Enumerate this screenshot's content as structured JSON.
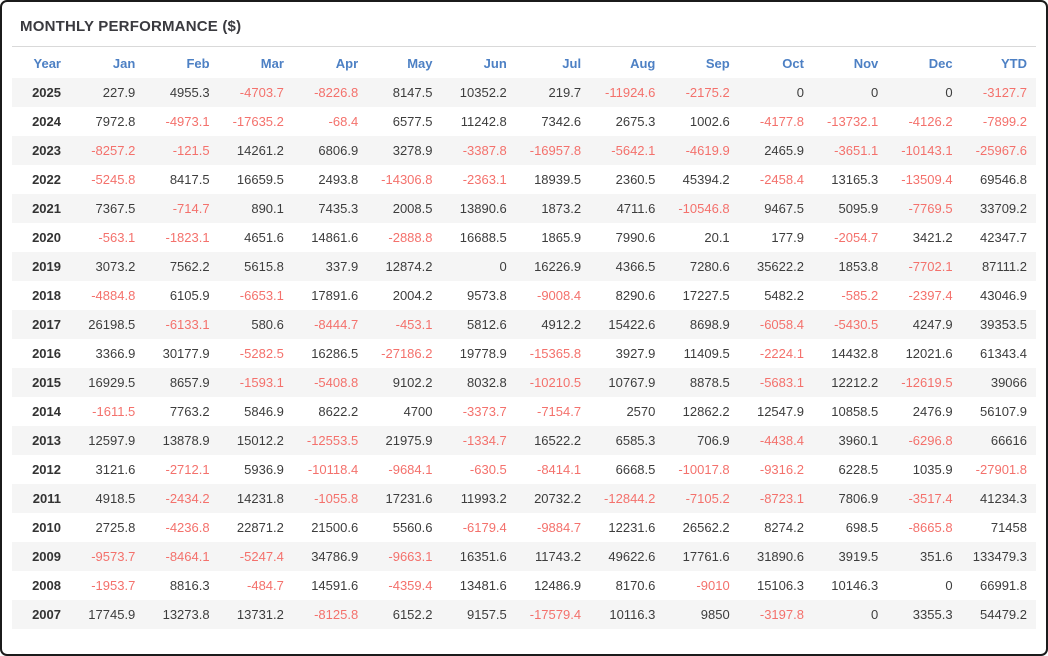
{
  "title": "MONTHLY PERFORMANCE ($)",
  "colors": {
    "header_blue": "#4d80c4",
    "negative_red": "#f4716c",
    "positive_text": "#3d3d3d",
    "stripe": "#f5f5f5",
    "border": "#1b1b1b"
  },
  "table": {
    "columns": [
      "Year",
      "Jan",
      "Feb",
      "Mar",
      "Apr",
      "May",
      "Jun",
      "Jul",
      "Aug",
      "Sep",
      "Oct",
      "Nov",
      "Dec",
      "YTD"
    ],
    "rows": [
      {
        "year": "2025",
        "values": [
          227.9,
          4955.3,
          -4703.7,
          -8226.8,
          8147.5,
          10352.2,
          219.7,
          -11924.6,
          -2175.2,
          0,
          0,
          0,
          -3127.7
        ]
      },
      {
        "year": "2024",
        "values": [
          7972.8,
          -4973.1,
          -17635.2,
          -68.4,
          6577.5,
          11242.8,
          7342.6,
          2675.3,
          1002.6,
          -4177.8,
          -13732.1,
          -4126.2,
          -7899.2
        ]
      },
      {
        "year": "2023",
        "values": [
          -8257.2,
          -121.5,
          14261.2,
          6806.9,
          3278.9,
          -3387.8,
          -16957.8,
          -5642.1,
          -4619.9,
          2465.9,
          -3651.1,
          -10143.1,
          -25967.6
        ]
      },
      {
        "year": "2022",
        "values": [
          -5245.8,
          8417.5,
          16659.5,
          2493.8,
          -14306.8,
          -2363.1,
          18939.5,
          2360.5,
          45394.2,
          -2458.4,
          13165.3,
          -13509.4,
          69546.8
        ]
      },
      {
        "year": "2021",
        "values": [
          7367.5,
          -714.7,
          890.1,
          7435.3,
          2008.5,
          13890.6,
          1873.2,
          4711.6,
          -10546.8,
          9467.5,
          5095.9,
          -7769.5,
          33709.2
        ]
      },
      {
        "year": "2020",
        "values": [
          -563.1,
          -1823.1,
          4651.6,
          14861.6,
          -2888.8,
          16688.5,
          1865.9,
          7990.6,
          20.1,
          177.9,
          -2054.7,
          3421.2,
          42347.7
        ]
      },
      {
        "year": "2019",
        "values": [
          3073.2,
          7562.2,
          5615.8,
          337.9,
          12874.2,
          0,
          16226.9,
          4366.5,
          7280.6,
          35622.2,
          1853.8,
          -7702.1,
          87111.2
        ]
      },
      {
        "year": "2018",
        "values": [
          -4884.8,
          6105.9,
          -6653.1,
          17891.6,
          2004.2,
          9573.8,
          -9008.4,
          8290.6,
          17227.5,
          5482.2,
          -585.2,
          -2397.4,
          43046.9
        ]
      },
      {
        "year": "2017",
        "values": [
          26198.5,
          -6133.1,
          580.6,
          -8444.7,
          -453.1,
          5812.6,
          4912.2,
          15422.6,
          8698.9,
          -6058.4,
          -5430.5,
          4247.9,
          39353.5
        ]
      },
      {
        "year": "2016",
        "values": [
          3366.9,
          30177.9,
          -5282.5,
          16286.5,
          -27186.2,
          19778.9,
          -15365.8,
          3927.9,
          11409.5,
          -2224.1,
          14432.8,
          12021.6,
          61343.4
        ]
      },
      {
        "year": "2015",
        "values": [
          16929.5,
          8657.9,
          -1593.1,
          -5408.8,
          9102.2,
          8032.8,
          -10210.5,
          10767.9,
          8878.5,
          -5683.1,
          12212.2,
          -12619.5,
          39066
        ]
      },
      {
        "year": "2014",
        "values": [
          -1611.5,
          7763.2,
          5846.9,
          8622.2,
          4700,
          -3373.7,
          -7154.7,
          2570,
          12862.2,
          12547.9,
          10858.5,
          2476.9,
          56107.9
        ]
      },
      {
        "year": "2013",
        "values": [
          12597.9,
          13878.9,
          15012.2,
          -12553.5,
          21975.9,
          -1334.7,
          16522.2,
          6585.3,
          706.9,
          -4438.4,
          3960.1,
          -6296.8,
          66616
        ]
      },
      {
        "year": "2012",
        "values": [
          3121.6,
          -2712.1,
          5936.9,
          -10118.4,
          -9684.1,
          -630.5,
          -8414.1,
          6668.5,
          -10017.8,
          -9316.2,
          6228.5,
          1035.9,
          -27901.8
        ]
      },
      {
        "year": "2011",
        "values": [
          4918.5,
          -2434.2,
          14231.8,
          -1055.8,
          17231.6,
          11993.2,
          20732.2,
          -12844.2,
          -7105.2,
          -8723.1,
          7806.9,
          -3517.4,
          41234.3
        ]
      },
      {
        "year": "2010",
        "values": [
          2725.8,
          -4236.8,
          22871.2,
          21500.6,
          5560.6,
          -6179.4,
          -9884.7,
          12231.6,
          26562.2,
          8274.2,
          698.5,
          -8665.8,
          71458
        ]
      },
      {
        "year": "2009",
        "values": [
          -9573.7,
          -8464.1,
          -5247.4,
          34786.9,
          -9663.1,
          16351.6,
          11743.2,
          49622.6,
          17761.6,
          31890.6,
          3919.5,
          351.6,
          133479.3
        ]
      },
      {
        "year": "2008",
        "values": [
          -1953.7,
          8816.3,
          -484.7,
          14591.6,
          -4359.4,
          13481.6,
          12486.9,
          8170.6,
          -9010,
          15106.3,
          10146.3,
          0,
          66991.8
        ]
      },
      {
        "year": "2007",
        "values": [
          17745.9,
          13273.8,
          13731.2,
          -8125.8,
          6152.2,
          9157.5,
          -17579.4,
          10116.3,
          9850,
          -3197.8,
          0,
          3355.3,
          54479.2
        ]
      }
    ]
  }
}
